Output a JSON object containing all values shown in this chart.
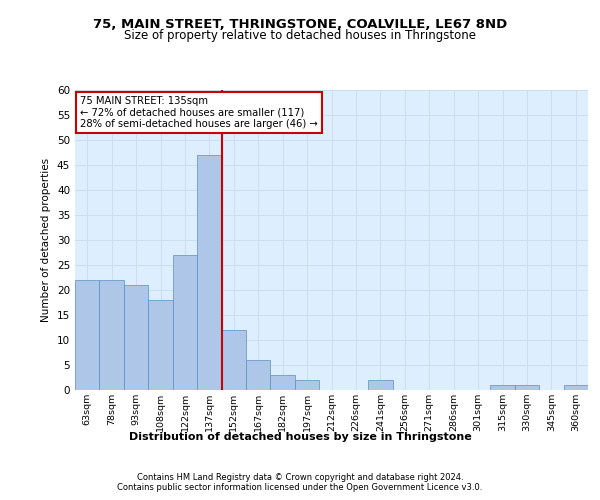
{
  "title1": "75, MAIN STREET, THRINGSTONE, COALVILLE, LE67 8ND",
  "title2": "Size of property relative to detached houses in Thringstone",
  "xlabel": "Distribution of detached houses by size in Thringstone",
  "ylabel": "Number of detached properties",
  "bar_labels": [
    "63sqm",
    "78sqm",
    "93sqm",
    "108sqm",
    "122sqm",
    "137sqm",
    "152sqm",
    "167sqm",
    "182sqm",
    "197sqm",
    "212sqm",
    "226sqm",
    "241sqm",
    "256sqm",
    "271sqm",
    "286sqm",
    "301sqm",
    "315sqm",
    "330sqm",
    "345sqm",
    "360sqm"
  ],
  "bar_values": [
    22,
    22,
    21,
    18,
    27,
    47,
    12,
    6,
    3,
    2,
    0,
    0,
    2,
    0,
    0,
    0,
    0,
    1,
    1,
    0,
    1
  ],
  "bar_color": "#aec6e8",
  "bar_edge_color": "#5a8fc2",
  "bar_width": 1.0,
  "vline_x": 5.5,
  "vline_color": "#cc0000",
  "annotation_text": "75 MAIN STREET: 135sqm\n← 72% of detached houses are smaller (117)\n28% of semi-detached houses are larger (46) →",
  "annotation_box_color": "#ffffff",
  "annotation_box_edge_color": "#cc0000",
  "ylim": [
    0,
    60
  ],
  "yticks": [
    0,
    5,
    10,
    15,
    20,
    25,
    30,
    35,
    40,
    45,
    50,
    55,
    60
  ],
  "grid_color": "#ccddee",
  "background_color": "#ddeeff",
  "footer_line1": "Contains HM Land Registry data © Crown copyright and database right 2024.",
  "footer_line2": "Contains public sector information licensed under the Open Government Licence v3.0."
}
